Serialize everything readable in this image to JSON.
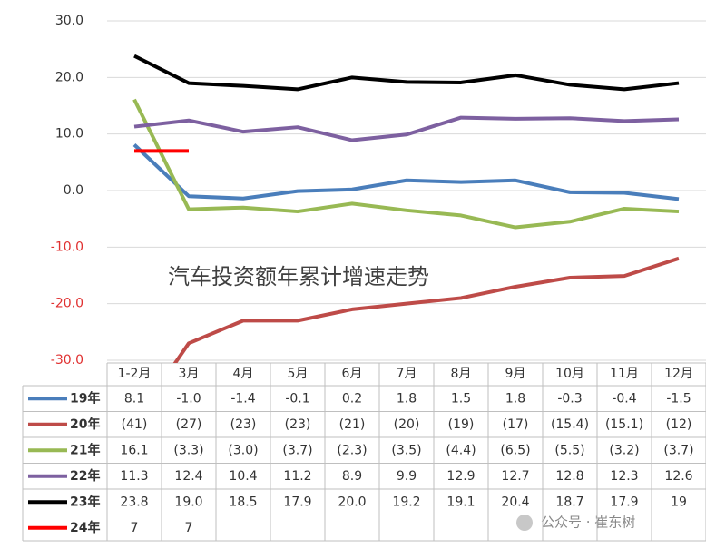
{
  "chart_data": {
    "type": "line",
    "annotation": "汽车投资额年累计增速走势",
    "watermark": "公众号 · 崔东树",
    "categories": [
      "1-2月",
      "3月",
      "4月",
      "5月",
      "6月",
      "7月",
      "8月",
      "9月",
      "10月",
      "11月",
      "12月"
    ],
    "ylim": [
      -30,
      30
    ],
    "yticks": [
      {
        "value": -30,
        "label": "-30.0"
      },
      {
        "value": -20,
        "label": "-20.0"
      },
      {
        "value": -10,
        "label": "-10.0"
      },
      {
        "value": 0,
        "label": "0.0"
      },
      {
        "value": 10,
        "label": "10.0"
      },
      {
        "value": 20,
        "label": "20.0"
      },
      {
        "value": 30,
        "label": "30.0"
      }
    ],
    "grid": true,
    "series": [
      {
        "name": "19年",
        "color": "#4a7ebb",
        "values": [
          8.1,
          -1.0,
          -1.4,
          -0.1,
          0.2,
          1.8,
          1.5,
          1.8,
          -0.3,
          -0.4,
          -1.5
        ],
        "value_labels": [
          "8.1",
          "-1.0",
          "-1.4",
          "-0.1",
          "0.2",
          "1.8",
          "1.5",
          "1.8",
          "-0.3",
          "-0.4",
          "-1.5"
        ]
      },
      {
        "name": "20年",
        "color": "#be4b48",
        "values": [
          -41,
          -27,
          -23,
          -23,
          -21,
          -20,
          -19,
          -17,
          -15.4,
          -15.1,
          -12
        ],
        "value_labels": [
          "(41)",
          "(27)",
          "(23)",
          "(23)",
          "(21)",
          "(20)",
          "(19)",
          "(17)",
          "(15.4)",
          "(15.1)",
          "(12)"
        ]
      },
      {
        "name": "21年",
        "color": "#98b954",
        "values": [
          16.1,
          -3.3,
          -3.0,
          -3.7,
          -2.3,
          -3.5,
          -4.4,
          -6.5,
          -5.5,
          -3.2,
          -3.7
        ],
        "value_labels": [
          "16.1",
          "(3.3)",
          "(3.0)",
          "(3.7)",
          "(2.3)",
          "(3.5)",
          "(4.4)",
          "(6.5)",
          "(5.5)",
          "(3.2)",
          "(3.7)"
        ]
      },
      {
        "name": "22年",
        "color": "#7d60a0",
        "values": [
          11.3,
          12.4,
          10.4,
          11.2,
          8.9,
          9.9,
          12.9,
          12.7,
          12.8,
          12.3,
          12.6
        ],
        "value_labels": [
          "11.3",
          "12.4",
          "10.4",
          "11.2",
          "8.9",
          "9.9",
          "12.9",
          "12.7",
          "12.8",
          "12.3",
          "12.6"
        ]
      },
      {
        "name": "23年",
        "color": "#000000",
        "values": [
          23.8,
          19.0,
          18.5,
          17.9,
          20.0,
          19.2,
          19.1,
          20.4,
          18.7,
          17.9,
          19
        ],
        "value_labels": [
          "23.8",
          "19.0",
          "18.5",
          "17.9",
          "20.0",
          "19.2",
          "19.1",
          "20.4",
          "18.7",
          "17.9",
          "19"
        ]
      },
      {
        "name": "24年",
        "color": "#ff0000",
        "values": [
          7,
          7,
          null,
          null,
          null,
          null,
          null,
          null,
          null,
          null,
          null
        ],
        "value_labels": [
          "7",
          "7",
          null,
          null,
          null,
          null,
          null,
          null,
          null,
          null,
          null
        ]
      }
    ]
  }
}
